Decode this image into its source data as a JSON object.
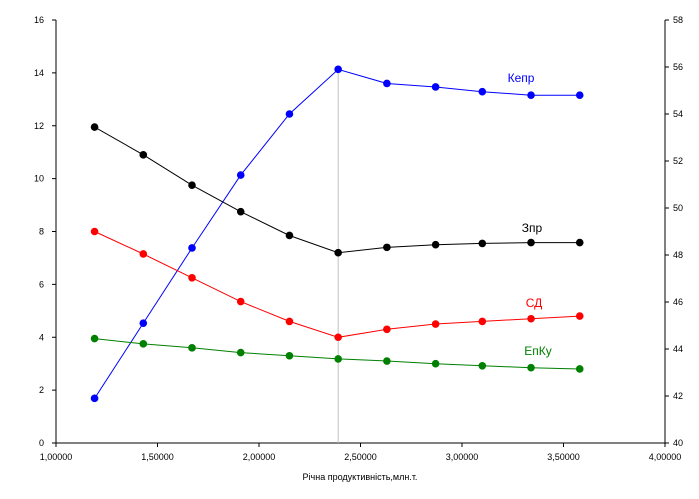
{
  "chart_data": {
    "type": "line",
    "title": "",
    "xlabel": "Річна продуктивність,млн.т.",
    "ylabel": "",
    "xlim": [
      1.0,
      4.0
    ],
    "ylim": [
      0,
      16
    ],
    "y2lim": [
      40,
      58
    ],
    "x_ticks": [
      1.0,
      1.5,
      2.0,
      2.5,
      3.0,
      3.5,
      4.0
    ],
    "x_tick_labels": [
      "1,00000",
      "1,50000",
      "2,00000",
      "2,50000",
      "3,00000",
      "3,50000",
      "4,00000"
    ],
    "y_ticks": [
      0,
      2,
      4,
      6,
      8,
      10,
      12,
      14,
      16
    ],
    "y_tick_labels": [
      "0",
      "2",
      "4",
      "6",
      "8",
      "10",
      "12",
      "14",
      "16"
    ],
    "y2_ticks": [
      40,
      42,
      44,
      46,
      48,
      50,
      52,
      54,
      56,
      58
    ],
    "y2_tick_labels": [
      "40",
      "42",
      "44",
      "46",
      "48",
      "50",
      "52",
      "54",
      "56",
      "58"
    ],
    "grid": false,
    "reference_line_x": 2.39,
    "x": [
      1.19,
      1.43,
      1.67,
      1.91,
      2.15,
      2.39,
      2.63,
      2.87,
      3.1,
      3.34,
      3.58
    ],
    "series": [
      {
        "name": "Кепр",
        "color": "#0000ff",
        "axis": "right",
        "values": [
          41.9,
          45.1,
          48.3,
          51.4,
          54.0,
          55.9,
          55.3,
          55.15,
          54.95,
          54.8,
          54.8
        ]
      },
      {
        "name": "Зпр",
        "color": "#000000",
        "axis": "left",
        "values": [
          11.95,
          10.9,
          9.75,
          8.75,
          7.85,
          7.2,
          7.4,
          7.5,
          7.55,
          7.58,
          7.58
        ]
      },
      {
        "name": "СД",
        "color": "#ff0000",
        "axis": "left",
        "values": [
          8.0,
          7.15,
          6.25,
          5.35,
          4.6,
          4.0,
          4.3,
          4.5,
          4.6,
          4.7,
          4.8
        ]
      },
      {
        "name": "ЕпКу",
        "color": "#008000",
        "axis": "left",
        "values": [
          3.95,
          3.75,
          3.6,
          3.42,
          3.3,
          3.18,
          3.1,
          3.0,
          2.92,
          2.85,
          2.8
        ]
      }
    ]
  }
}
